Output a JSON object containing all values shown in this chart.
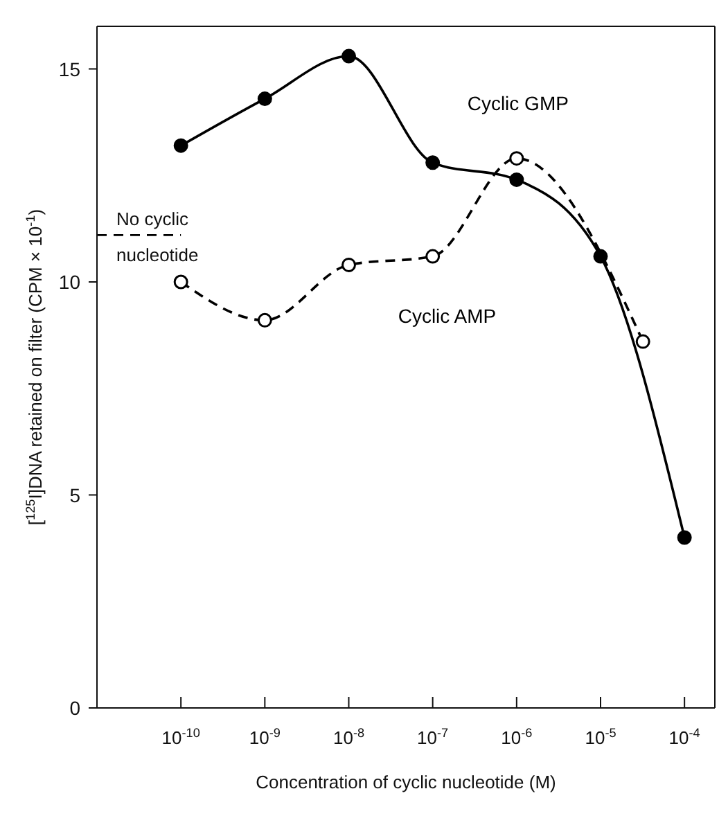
{
  "chart_data": {
    "type": "line",
    "xlabel": "Concentration of cyclic nucleotide  (M)",
    "ylabel": "[$^{125}$I]DNA retained on filter  (CPM × 10$^{-1}$)",
    "log": "x",
    "xlim": [
      1e-11,
      0.00023
    ],
    "xticks": [
      {
        "value": 1e-10,
        "label": "10$^{-10}$"
      },
      {
        "value": 1e-09,
        "label": "10$^{-9}$"
      },
      {
        "value": 1e-08,
        "label": "10$^{-8}$"
      },
      {
        "value": 1e-07,
        "label": "10$^{-7}$"
      },
      {
        "value": 1e-06,
        "label": "10$^{-6}$"
      },
      {
        "value": 1e-05,
        "label": "10$^{-5}$"
      },
      {
        "value": 0.0001,
        "label": "10$^{-4}$"
      }
    ],
    "ylim": [
      0,
      16
    ],
    "yticks": [
      0,
      5,
      10,
      15
    ],
    "marker": "circle",
    "series": [
      {
        "name": "Cyclic GMP",
        "color": "#000000",
        "line_style": "solid",
        "x": [
          1e-10,
          1e-09,
          1e-08,
          1e-07,
          1e-06,
          1e-05,
          0.0001
        ],
        "values": [
          13.2,
          14.3,
          15.3,
          12.8,
          12.4,
          10.6,
          4.0
        ]
      },
      {
        "name": "Cyclic AMP",
        "color": "#000000",
        "line_style": "dashed",
        "x": [
          1e-10,
          1e-09,
          1e-08,
          1e-07,
          1e-06,
          3.2e-05
        ],
        "values": [
          10.0,
          9.1,
          10.4,
          10.6,
          12.9,
          8.6
        ]
      }
    ],
    "ref_lines": [
      {
        "axis": "y",
        "value": 11.1,
        "label": "No cyclic nucleotide",
        "line_style": "dashed",
        "color": "#000000"
      }
    ]
  }
}
